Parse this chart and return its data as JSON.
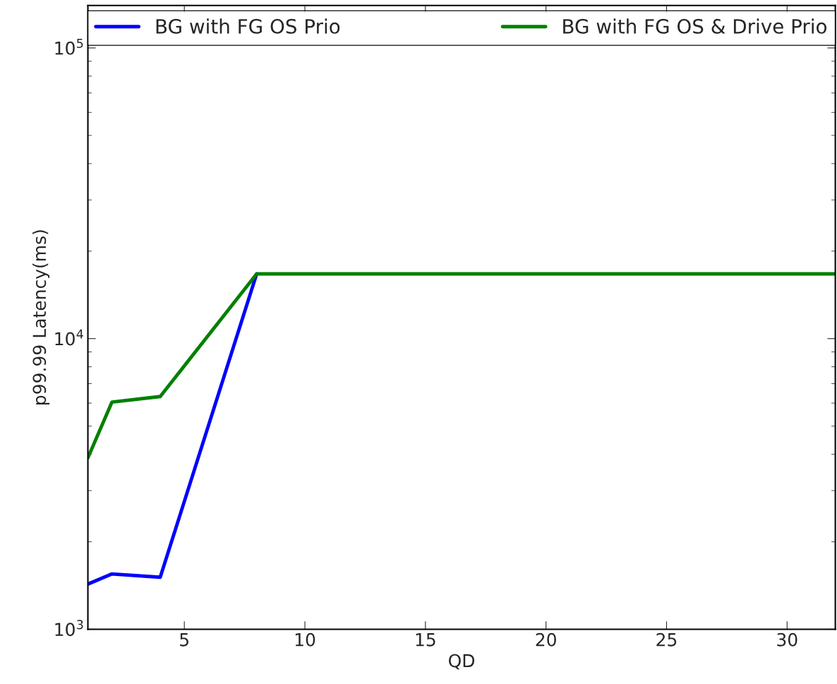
{
  "chart_data": {
    "type": "line",
    "xlabel": "QD",
    "ylabel": "p99.99 Latency(ms)",
    "x": [
      1,
      2,
      4,
      8,
      16,
      32
    ],
    "series": [
      {
        "name": "BG with FG OS Prio",
        "color": "#0000ff",
        "values": [
          1430,
          1550,
          1510,
          16700,
          null,
          null
        ]
      },
      {
        "name": "BG with FG OS & Drive Prio",
        "color": "#008000",
        "values": [
          3890,
          6050,
          6320,
          16700,
          16700,
          16700
        ]
      }
    ],
    "log": "y",
    "xlim": [
      1,
      32
    ],
    "ylim": [
      1000,
      140000
    ],
    "xticks": [
      5,
      10,
      15,
      20,
      25,
      30
    ],
    "yticks": [
      {
        "value": 1000,
        "label": "10$^{3}$"
      },
      {
        "value": 10000,
        "label": "10$^{4}$"
      },
      {
        "value": 100000,
        "label": "10$^{5}$"
      }
    ],
    "grid": false,
    "legend": "top",
    "marker": "none",
    "line_style": "solid"
  }
}
